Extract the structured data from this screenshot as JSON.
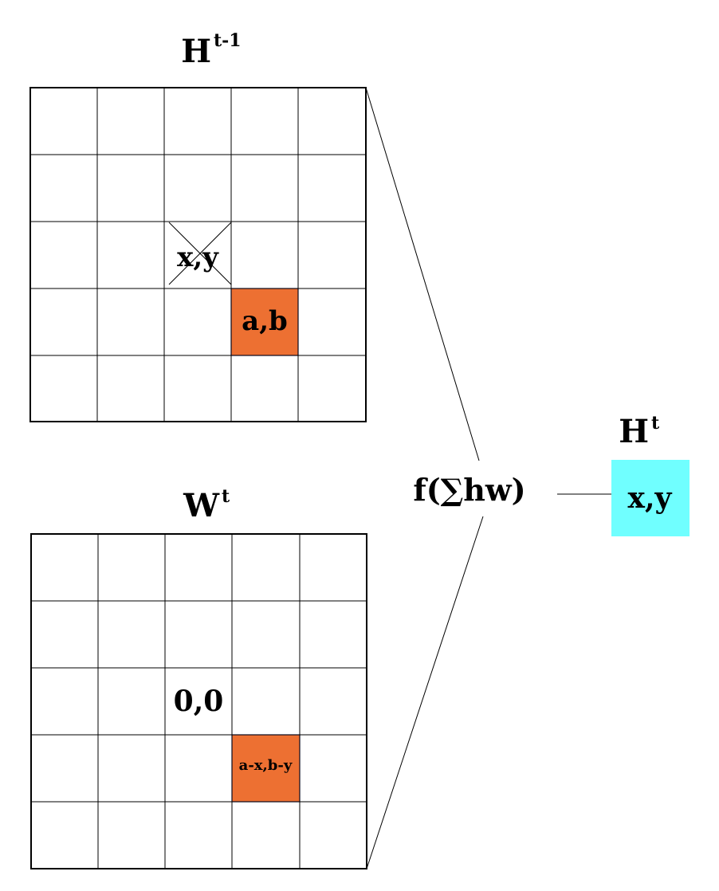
{
  "top_grid": {
    "title_main": "H",
    "title_sup": "t-1",
    "origin_label": "x,y",
    "highlight_label": "a,b",
    "highlight_color": "#ED7032"
  },
  "bottom_grid": {
    "title_main": "W",
    "title_sup": "t",
    "origin_label": "0,0",
    "highlight_label": "a-x,b-y",
    "highlight_color": "#ED7032"
  },
  "function_label": "f(∑hw)",
  "output": {
    "title_main": "H",
    "title_sup": "t",
    "cell_label": "x,y",
    "cell_color": "#70FFFF"
  }
}
